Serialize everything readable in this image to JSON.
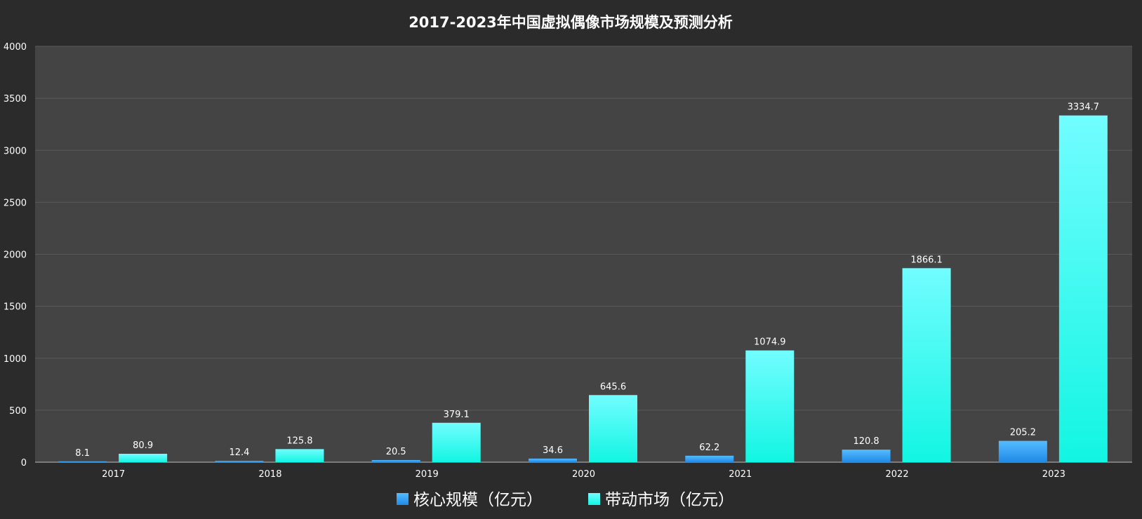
{
  "chart_data": {
    "type": "bar",
    "title": "2017-2023年中国虚拟偶像市场规模及预测分析",
    "categories": [
      "2017",
      "2018",
      "2019",
      "2020",
      "2021",
      "2022",
      "2023"
    ],
    "series": [
      {
        "name": "核心规模（亿元）",
        "values": [
          8.1,
          12.4,
          20.5,
          34.6,
          62.2,
          120.8,
          205.2
        ],
        "color": "#2e9bf0"
      },
      {
        "name": "带动市场（亿元）",
        "values": [
          80.9,
          125.8,
          379.1,
          645.6,
          1074.9,
          1866.1,
          3334.7
        ],
        "color": "#2ff5ea"
      }
    ],
    "ylim": [
      0,
      4000
    ],
    "yticks": [
      0,
      500,
      1000,
      1500,
      2000,
      2500,
      3000,
      3500,
      4000
    ],
    "grid": true,
    "legend_position": "bottom-center",
    "colors": {
      "background": "#2b2b2b",
      "plot_background": "#444444",
      "grid": "#5a5a5a",
      "text": "#ffffff"
    }
  }
}
